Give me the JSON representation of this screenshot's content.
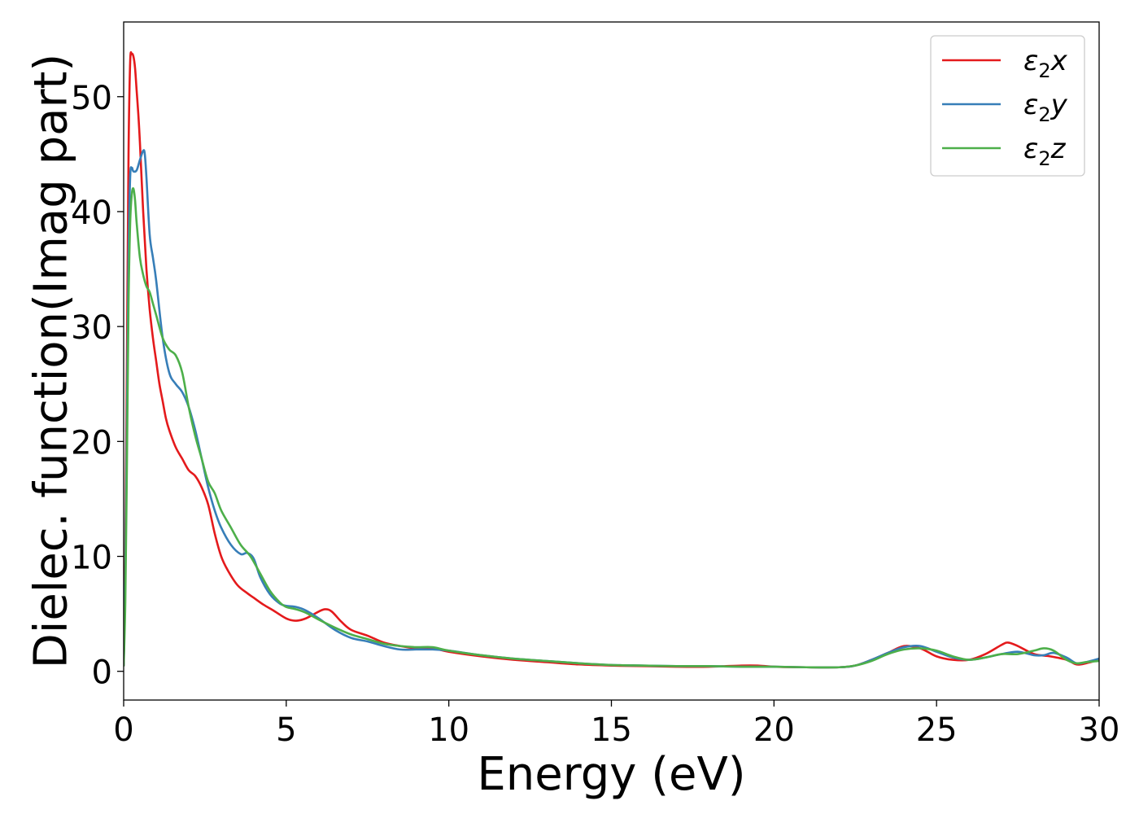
{
  "chart_data": {
    "type": "line",
    "title": "",
    "xlabel": "Energy (eV)",
    "ylabel": "Dielec. function(Imag part)",
    "xlim": [
      0,
      30
    ],
    "ylim": [
      -2.5,
      56.5
    ],
    "xticks": [
      0,
      5,
      10,
      15,
      20,
      25,
      30
    ],
    "yticks": [
      0,
      10,
      20,
      30,
      40,
      50
    ],
    "grid": false,
    "legend_position": "top-right",
    "series": [
      {
        "name": "ε₂x",
        "legend": {
          "base": "ε",
          "sub": "2",
          "var": "x"
        },
        "color": "#e41a1c",
        "x": [
          0,
          0.05,
          0.1,
          0.15,
          0.2,
          0.25,
          0.3,
          0.35,
          0.4,
          0.45,
          0.5,
          0.6,
          0.7,
          0.8,
          0.9,
          1.0,
          1.1,
          1.2,
          1.3,
          1.4,
          1.6,
          1.8,
          2.0,
          2.2,
          2.4,
          2.6,
          2.8,
          3.0,
          3.2,
          3.5,
          3.8,
          4.0,
          4.3,
          4.6,
          5.0,
          5.3,
          5.6,
          6.0,
          6.2,
          6.4,
          6.7,
          7.0,
          7.5,
          8.0,
          8.5,
          9.0,
          9.5,
          10.0,
          11.0,
          12.0,
          13.0,
          14.0,
          15.0,
          16.0,
          17.0,
          18.0,
          19.0,
          19.5,
          20.0,
          21.0,
          22.0,
          22.5,
          23.0,
          23.5,
          24.0,
          24.5,
          25.0,
          25.5,
          26.0,
          26.5,
          27.0,
          27.2,
          27.5,
          28.0,
          28.5,
          29.0,
          29.3,
          29.6,
          30.0
        ],
        "values": [
          0.5,
          10,
          27,
          45,
          53,
          53.7,
          53.5,
          52.5,
          50.5,
          48.5,
          46,
          40,
          35,
          31.5,
          29,
          27,
          25,
          23.5,
          22,
          21,
          19.5,
          18.5,
          17.5,
          17,
          16,
          14.5,
          12,
          10,
          8.8,
          7.5,
          6.8,
          6.4,
          5.8,
          5.3,
          4.6,
          4.4,
          4.6,
          5.2,
          5.4,
          5.2,
          4.3,
          3.6,
          3.1,
          2.5,
          2.2,
          2.0,
          2.0,
          1.7,
          1.3,
          1.0,
          0.8,
          0.6,
          0.5,
          0.45,
          0.4,
          0.4,
          0.5,
          0.5,
          0.4,
          0.35,
          0.35,
          0.5,
          1.0,
          1.6,
          2.2,
          2.0,
          1.3,
          1.0,
          1.0,
          1.5,
          2.3,
          2.5,
          2.2,
          1.5,
          1.3,
          1.0,
          0.6,
          0.7,
          1.0
        ]
      },
      {
        "name": "ε₂y",
        "legend": {
          "base": "ε",
          "sub": "2",
          "var": "y"
        },
        "color": "#377eb8",
        "x": [
          0,
          0.05,
          0.1,
          0.15,
          0.2,
          0.25,
          0.3,
          0.4,
          0.5,
          0.6,
          0.65,
          0.7,
          0.8,
          0.9,
          1.0,
          1.2,
          1.4,
          1.6,
          1.8,
          2.0,
          2.2,
          2.4,
          2.6,
          2.8,
          3.0,
          3.3,
          3.6,
          3.8,
          4.0,
          4.2,
          4.5,
          4.8,
          5.0,
          5.3,
          5.6,
          6.0,
          6.5,
          7.0,
          7.5,
          8.0,
          8.5,
          9.0,
          9.5,
          10.0,
          11.0,
          12.0,
          13.0,
          14.0,
          15.0,
          16.0,
          17.0,
          18.0,
          19.0,
          20.0,
          21.0,
          22.0,
          22.5,
          23.0,
          23.5,
          24.0,
          24.5,
          25.0,
          25.5,
          26.0,
          26.5,
          27.0,
          27.5,
          28.0,
          28.3,
          28.6,
          29.0,
          29.3,
          29.6,
          30.0
        ],
        "values": [
          0.5,
          8,
          22,
          36,
          43,
          43.8,
          43.5,
          43.6,
          44.5,
          45.3,
          45,
          43,
          38,
          36,
          34,
          29,
          26,
          25,
          24.3,
          23,
          21,
          18.5,
          16,
          14,
          12.5,
          11,
          10.2,
          10.3,
          9.8,
          8.2,
          6.7,
          5.9,
          5.7,
          5.6,
          5.3,
          4.6,
          3.6,
          2.9,
          2.6,
          2.2,
          1.9,
          1.9,
          1.9,
          1.8,
          1.4,
          1.1,
          0.9,
          0.7,
          0.55,
          0.5,
          0.45,
          0.45,
          0.4,
          0.4,
          0.35,
          0.35,
          0.5,
          1.0,
          1.6,
          2.1,
          2.2,
          1.7,
          1.2,
          1.0,
          1.2,
          1.5,
          1.7,
          1.4,
          1.4,
          1.6,
          1.2,
          0.7,
          0.8,
          1.1
        ]
      },
      {
        "name": "ε₂z",
        "legend": {
          "base": "ε",
          "sub": "2",
          "var": "z"
        },
        "color": "#4daf4a",
        "x": [
          0,
          0.05,
          0.1,
          0.15,
          0.2,
          0.25,
          0.3,
          0.35,
          0.4,
          0.5,
          0.6,
          0.7,
          0.8,
          0.9,
          1.0,
          1.2,
          1.4,
          1.6,
          1.8,
          2.0,
          2.2,
          2.4,
          2.6,
          2.8,
          3.0,
          3.3,
          3.6,
          3.9,
          4.2,
          4.5,
          4.8,
          5.0,
          5.3,
          5.6,
          6.0,
          6.5,
          7.0,
          7.5,
          8.0,
          8.5,
          9.0,
          9.5,
          10.0,
          11.0,
          12.0,
          13.0,
          14.0,
          15.0,
          16.0,
          17.0,
          18.0,
          19.0,
          20.0,
          21.0,
          22.0,
          22.5,
          23.0,
          23.5,
          24.0,
          24.5,
          25.0,
          25.5,
          26.0,
          26.5,
          27.0,
          27.5,
          28.0,
          28.3,
          28.6,
          29.0,
          29.3,
          29.6,
          30.0
        ],
        "values": [
          0.5,
          6,
          18,
          32,
          39,
          41.5,
          42,
          41,
          39,
          36,
          34.5,
          33.5,
          33,
          32,
          31,
          29,
          28,
          27.5,
          26,
          23,
          20.5,
          18.5,
          16.5,
          15.5,
          14,
          12.5,
          11,
          10,
          8.5,
          7,
          6,
          5.6,
          5.4,
          5.1,
          4.5,
          3.8,
          3.2,
          2.8,
          2.4,
          2.2,
          2.1,
          2.1,
          1.8,
          1.4,
          1.1,
          0.9,
          0.7,
          0.55,
          0.5,
          0.45,
          0.45,
          0.4,
          0.4,
          0.35,
          0.35,
          0.5,
          0.9,
          1.5,
          1.9,
          2.0,
          1.8,
          1.3,
          1.0,
          1.2,
          1.5,
          1.5,
          1.8,
          2.0,
          1.8,
          1.0,
          0.7,
          0.8,
          0.9
        ]
      }
    ]
  }
}
